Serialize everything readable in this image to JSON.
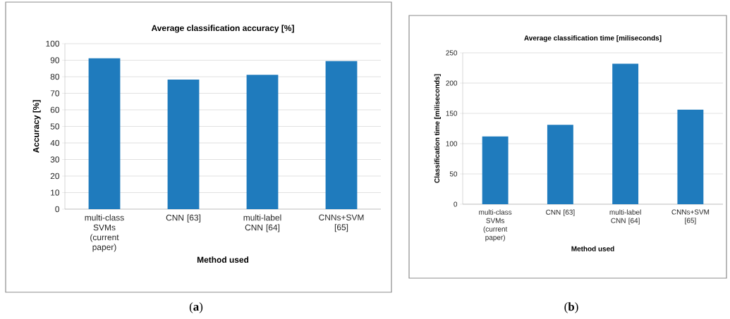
{
  "chart_data": [
    {
      "type": "bar",
      "title": "Average classification accuracy [%]",
      "xlabel": "Method used",
      "ylabel": "Accuracy  [%]",
      "categories": [
        "multi-class SVMs (current paper)",
        "CNN [63]",
        "multi-label CNN [64]",
        "CNNs+SVM [65]"
      ],
      "values": [
        91.2,
        78.3,
        81.2,
        89.5
      ],
      "color": "#1f7bbd",
      "ylim": [
        0,
        100
      ],
      "yticks": [
        0,
        10,
        20,
        30,
        40,
        50,
        60,
        70,
        80,
        90,
        100
      ],
      "grid": "y",
      "annotations": [
        "(**a**)"
      ]
    },
    {
      "type": "bar",
      "title": "Average classification time [miliseconds]",
      "xlabel": "Method used",
      "ylabel": "Classification time [miliseconds]",
      "categories": [
        "multi-class SVMs (current paper)",
        "CNN [63]",
        "multi-label CNN [64]",
        "CNNs+SVM [65]"
      ],
      "values": [
        112,
        131,
        232,
        156
      ],
      "color": "#1f7bbd",
      "ylim": [
        0,
        250
      ],
      "yticks": [
        0,
        50,
        100,
        150,
        200,
        250
      ],
      "grid": "y",
      "annotations": [
        "(**b**)"
      ]
    }
  ]
}
